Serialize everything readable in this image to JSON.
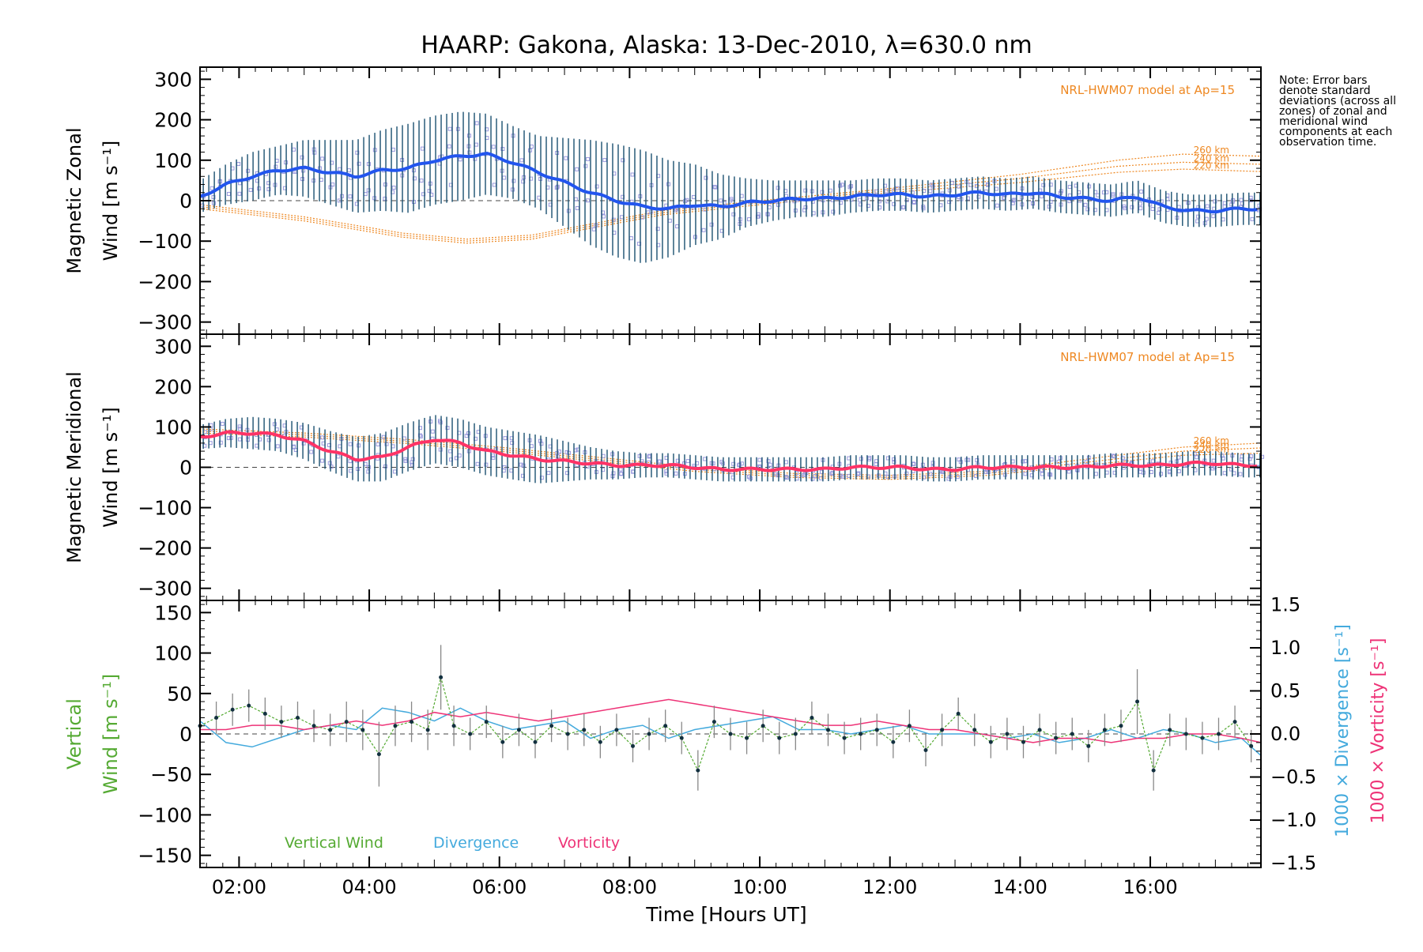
{
  "chart_data": {
    "type": "line",
    "title": "HAARP: Gakona,  Alaska: 13-Dec-2010, λ=630.0 nm",
    "xlabel": "Time [Hours UT]",
    "x_ticks": [
      "02:00",
      "04:00",
      "06:00",
      "08:00",
      "10:00",
      "12:00",
      "14:00",
      "16:00"
    ],
    "x_tick_hours": [
      2,
      4,
      6,
      8,
      10,
      12,
      14,
      16
    ],
    "xlim": [
      1.4,
      17.7
    ],
    "note": "Note: Error bars denote standard deviations (across all zones) of zonal and meridional wind components at each observation time.",
    "colors": {
      "zonal": "#2255ee",
      "meridional": "#ff3366",
      "vertical": "#55aa33",
      "divergence": "#44aadd",
      "vorticity": "#ee3377",
      "model": "#ee8822",
      "points": "#9999dd",
      "errorbar": "#1a5070"
    },
    "panels": [
      {
        "id": "zonal",
        "ylabel_line1": "Magnetic Zonal",
        "ylabel_line2": "Wind [m s⁻¹]",
        "ylim": [
          -330,
          330
        ],
        "yticks": [
          "300",
          "200",
          "100",
          "0",
          "−100",
          "−200",
          "−300"
        ],
        "ytick_values": [
          300,
          200,
          100,
          0,
          -100,
          -200,
          -300
        ],
        "model_label": "NRL-HWM07 model at Ap=15",
        "model_heights": [
          "260 km",
          "240 km",
          "220 km"
        ],
        "series": {
          "name": "",
          "x": [
            1.4,
            1.8,
            2.2,
            2.6,
            3.0,
            3.4,
            3.8,
            4.2,
            4.6,
            5.0,
            5.4,
            5.8,
            6.2,
            6.6,
            7.0,
            7.4,
            7.8,
            8.2,
            8.6,
            9.0,
            9.4,
            9.8,
            10.2,
            10.6,
            11.0,
            11.4,
            11.8,
            12.2,
            12.6,
            13.0,
            13.4,
            13.8,
            14.2,
            14.6,
            15.0,
            15.4,
            15.8,
            16.2,
            16.6,
            17.0,
            17.4,
            17.7
          ],
          "y": [
            10,
            40,
            60,
            75,
            80,
            70,
            60,
            75,
            80,
            100,
            110,
            115,
            95,
            70,
            45,
            20,
            0,
            -15,
            -20,
            -10,
            -15,
            -5,
            0,
            5,
            5,
            10,
            15,
            15,
            10,
            15,
            20,
            15,
            20,
            10,
            5,
            0,
            10,
            -15,
            -25,
            -25,
            -20,
            -20
          ],
          "err": [
            40,
            50,
            60,
            60,
            70,
            80,
            90,
            100,
            110,
            110,
            110,
            100,
            90,
            90,
            110,
            130,
            140,
            140,
            120,
            100,
            80,
            60,
            50,
            45,
            45,
            40,
            40,
            40,
            40,
            40,
            40,
            40,
            40,
            40,
            40,
            40,
            40,
            40,
            40,
            40,
            40,
            40
          ]
        },
        "models": [
          {
            "label": "260 km",
            "x": [
              1.4,
              3.0,
              4.5,
              5.5,
              6.5,
              7.5,
              8.5,
              10.0,
              12.0,
              14.0,
              15.5,
              16.5,
              17.7
            ],
            "y": [
              -10,
              -40,
              -80,
              -95,
              -85,
              -55,
              -25,
              0,
              30,
              65,
              100,
              115,
              110
            ]
          },
          {
            "label": "240 km",
            "x": [
              1.4,
              3.0,
              4.5,
              5.5,
              6.5,
              7.5,
              8.5,
              10.0,
              12.0,
              14.0,
              15.5,
              16.5,
              17.7
            ],
            "y": [
              -15,
              -45,
              -85,
              -100,
              -90,
              -60,
              -30,
              -5,
              25,
              55,
              85,
              95,
              90
            ]
          },
          {
            "label": "220 km",
            "x": [
              1.4,
              3.0,
              4.5,
              5.5,
              6.5,
              7.5,
              8.5,
              10.0,
              12.0,
              14.0,
              15.5,
              16.5,
              17.7
            ],
            "y": [
              -20,
              -50,
              -90,
              -105,
              -95,
              -65,
              -35,
              -10,
              20,
              45,
              70,
              78,
              72
            ]
          }
        ]
      },
      {
        "id": "meridional",
        "ylabel_line1": "Magnetic Meridional",
        "ylabel_line2": "Wind [m s⁻¹]",
        "ylim": [
          -330,
          330
        ],
        "yticks": [
          "300",
          "200",
          "100",
          "0",
          "−100",
          "−200",
          "−300"
        ],
        "ytick_values": [
          300,
          200,
          100,
          0,
          -100,
          -200,
          -300
        ],
        "model_label": "NRL-HWM07 model at Ap=15",
        "model_heights": [
          "260 km",
          "240 km",
          "220 km"
        ],
        "series": {
          "name": "",
          "x": [
            1.4,
            1.8,
            2.2,
            2.6,
            3.0,
            3.4,
            3.8,
            4.2,
            4.6,
            5.0,
            5.4,
            5.8,
            6.2,
            6.6,
            7.0,
            7.4,
            7.8,
            8.2,
            8.6,
            9.0,
            9.4,
            9.8,
            10.2,
            10.6,
            11.0,
            11.4,
            11.8,
            12.2,
            12.6,
            13.0,
            13.4,
            13.8,
            14.2,
            14.6,
            15.0,
            15.4,
            15.8,
            16.2,
            16.6,
            17.0,
            17.4,
            17.7
          ],
          "y": [
            75,
            85,
            85,
            80,
            65,
            40,
            20,
            25,
            50,
            70,
            60,
            40,
            30,
            20,
            15,
            10,
            5,
            5,
            5,
            0,
            -5,
            -5,
            -5,
            -5,
            -5,
            0,
            0,
            0,
            -5,
            -5,
            0,
            0,
            0,
            0,
            0,
            5,
            5,
            5,
            10,
            10,
            5,
            5
          ],
          "err": [
            30,
            35,
            40,
            40,
            45,
            50,
            55,
            60,
            60,
            60,
            60,
            60,
            60,
            60,
            50,
            40,
            35,
            30,
            30,
            30,
            30,
            30,
            30,
            30,
            30,
            30,
            30,
            30,
            30,
            30,
            30,
            30,
            30,
            30,
            30,
            30,
            30,
            30,
            30,
            30,
            30,
            30
          ]
        },
        "models": [
          {
            "label": "260 km",
            "x": [
              1.4,
              3.0,
              4.5,
              6.0,
              7.5,
              9.0,
              10.5,
              12.0,
              13.5,
              15.0,
              16.5,
              17.7
            ],
            "y": [
              95,
              85,
              70,
              50,
              25,
              0,
              -15,
              -20,
              -10,
              20,
              50,
              60
            ]
          },
          {
            "label": "240 km",
            "x": [
              1.4,
              3.0,
              4.5,
              6.0,
              7.5,
              9.0,
              10.5,
              12.0,
              13.5,
              15.0,
              16.5,
              17.7
            ],
            "y": [
              90,
              80,
              65,
              45,
              20,
              -5,
              -20,
              -25,
              -15,
              12,
              40,
              48
            ]
          },
          {
            "label": "220 km",
            "x": [
              1.4,
              3.0,
              4.5,
              6.0,
              7.5,
              9.0,
              10.5,
              12.0,
              13.5,
              15.0,
              16.5,
              17.7
            ],
            "y": [
              85,
              75,
              60,
              40,
              15,
              -10,
              -25,
              -30,
              -20,
              5,
              30,
              35
            ]
          }
        ]
      },
      {
        "id": "vertical",
        "ylabel_line1": "Vertical",
        "ylabel_line2": "Wind [m s⁻¹]",
        "ylim": [
          -165,
          165
        ],
        "yticks": [
          "150",
          "100",
          "50",
          "0",
          "−50",
          "−100",
          "−150"
        ],
        "ytick_values": [
          150,
          100,
          50,
          0,
          -50,
          -100,
          -150
        ],
        "right_ylim": [
          -1.55,
          1.55
        ],
        "right_yticks": [
          "1.5",
          "1.0",
          "0.5",
          "0.0",
          "−0.5",
          "−1.0",
          "−1.5"
        ],
        "right_ytick_values": [
          1.5,
          1.0,
          0.5,
          0.0,
          -0.5,
          -1.0,
          -1.5
        ],
        "right_ylabel_div": "1000 × Divergence [s⁻¹]",
        "right_ylabel_vor": "1000 × Vorticity [s⁻¹]",
        "legend": [
          "Vertical Wind",
          "Divergence",
          "Vorticity"
        ],
        "vertical": {
          "x": [
            1.4,
            1.65,
            1.9,
            2.15,
            2.4,
            2.65,
            2.9,
            3.15,
            3.4,
            3.65,
            3.9,
            4.15,
            4.4,
            4.65,
            4.9,
            5.1,
            5.3,
            5.55,
            5.8,
            6.05,
            6.3,
            6.55,
            6.8,
            7.05,
            7.3,
            7.55,
            7.8,
            8.05,
            8.3,
            8.55,
            8.8,
            9.05,
            9.3,
            9.55,
            9.8,
            10.05,
            10.3,
            10.55,
            10.8,
            11.05,
            11.3,
            11.55,
            11.8,
            12.05,
            12.3,
            12.55,
            12.8,
            13.05,
            13.3,
            13.55,
            13.8,
            14.05,
            14.3,
            14.55,
            14.8,
            15.05,
            15.3,
            15.55,
            15.8,
            16.05,
            16.3,
            16.55,
            16.8,
            17.05,
            17.3,
            17.55
          ],
          "y": [
            10,
            20,
            30,
            35,
            25,
            15,
            20,
            10,
            5,
            15,
            5,
            -25,
            10,
            15,
            5,
            70,
            10,
            0,
            15,
            -10,
            5,
            -10,
            10,
            0,
            5,
            -10,
            5,
            -15,
            0,
            10,
            -5,
            -45,
            15,
            0,
            -5,
            10,
            -5,
            0,
            20,
            5,
            -5,
            0,
            5,
            -10,
            10,
            -20,
            5,
            25,
            5,
            -10,
            0,
            -10,
            5,
            -5,
            0,
            -15,
            5,
            10,
            40,
            -45,
            5,
            0,
            -5,
            0,
            15,
            -15
          ],
          "err": [
            20,
            20,
            20,
            20,
            20,
            20,
            20,
            20,
            20,
            25,
            25,
            40,
            25,
            25,
            25,
            40,
            25,
            20,
            20,
            20,
            20,
            20,
            20,
            20,
            20,
            20,
            20,
            20,
            20,
            20,
            20,
            25,
            20,
            20,
            20,
            20,
            20,
            20,
            20,
            20,
            20,
            20,
            20,
            20,
            20,
            20,
            20,
            20,
            20,
            20,
            20,
            20,
            20,
            20,
            20,
            20,
            20,
            20,
            40,
            25,
            20,
            20,
            20,
            20,
            20,
            20
          ]
        },
        "divergence": {
          "x": [
            1.4,
            1.8,
            2.2,
            2.6,
            3.0,
            3.4,
            3.8,
            4.2,
            4.6,
            5.0,
            5.4,
            5.8,
            6.2,
            6.6,
            7.0,
            7.4,
            7.8,
            8.2,
            8.6,
            9.0,
            9.4,
            9.8,
            10.2,
            10.6,
            11.0,
            11.4,
            11.8,
            12.2,
            12.6,
            13.0,
            13.4,
            13.8,
            14.2,
            14.6,
            15.0,
            15.4,
            15.8,
            16.2,
            16.6,
            17.0,
            17.4,
            17.7
          ],
          "y": [
            0.15,
            -0.1,
            -0.15,
            -0.05,
            0.05,
            0.1,
            0.05,
            0.3,
            0.25,
            0.15,
            0.3,
            0.15,
            0.05,
            0.1,
            0.15,
            -0.05,
            0.05,
            0.1,
            -0.05,
            0.05,
            0.1,
            0.15,
            0.2,
            0.05,
            0.05,
            0.0,
            0.05,
            0.1,
            0.0,
            0.0,
            0.0,
            -0.05,
            0.0,
            -0.1,
            -0.05,
            0.05,
            -0.05,
            0.05,
            0.0,
            -0.1,
            -0.05,
            -0.25
          ]
        },
        "vorticity": {
          "x": [
            1.4,
            1.8,
            2.2,
            2.6,
            3.0,
            3.4,
            3.8,
            4.2,
            4.6,
            5.0,
            5.4,
            5.8,
            6.2,
            6.6,
            7.0,
            7.4,
            7.8,
            8.2,
            8.6,
            9.0,
            9.4,
            9.8,
            10.2,
            10.6,
            11.0,
            11.4,
            11.8,
            12.2,
            12.6,
            13.0,
            13.4,
            13.8,
            14.2,
            14.6,
            15.0,
            15.4,
            15.8,
            16.2,
            16.6,
            17.0,
            17.4,
            17.7
          ],
          "y": [
            0.05,
            0.05,
            0.1,
            0.1,
            0.05,
            0.1,
            0.15,
            0.1,
            0.15,
            0.25,
            0.2,
            0.25,
            0.2,
            0.15,
            0.2,
            0.25,
            0.3,
            0.35,
            0.4,
            0.35,
            0.3,
            0.25,
            0.2,
            0.15,
            0.1,
            0.1,
            0.15,
            0.1,
            0.05,
            0.05,
            0.0,
            -0.05,
            -0.1,
            -0.05,
            -0.05,
            -0.1,
            -0.05,
            -0.05,
            0.0,
            0.0,
            -0.05,
            -0.1
          ]
        }
      }
    ]
  }
}
